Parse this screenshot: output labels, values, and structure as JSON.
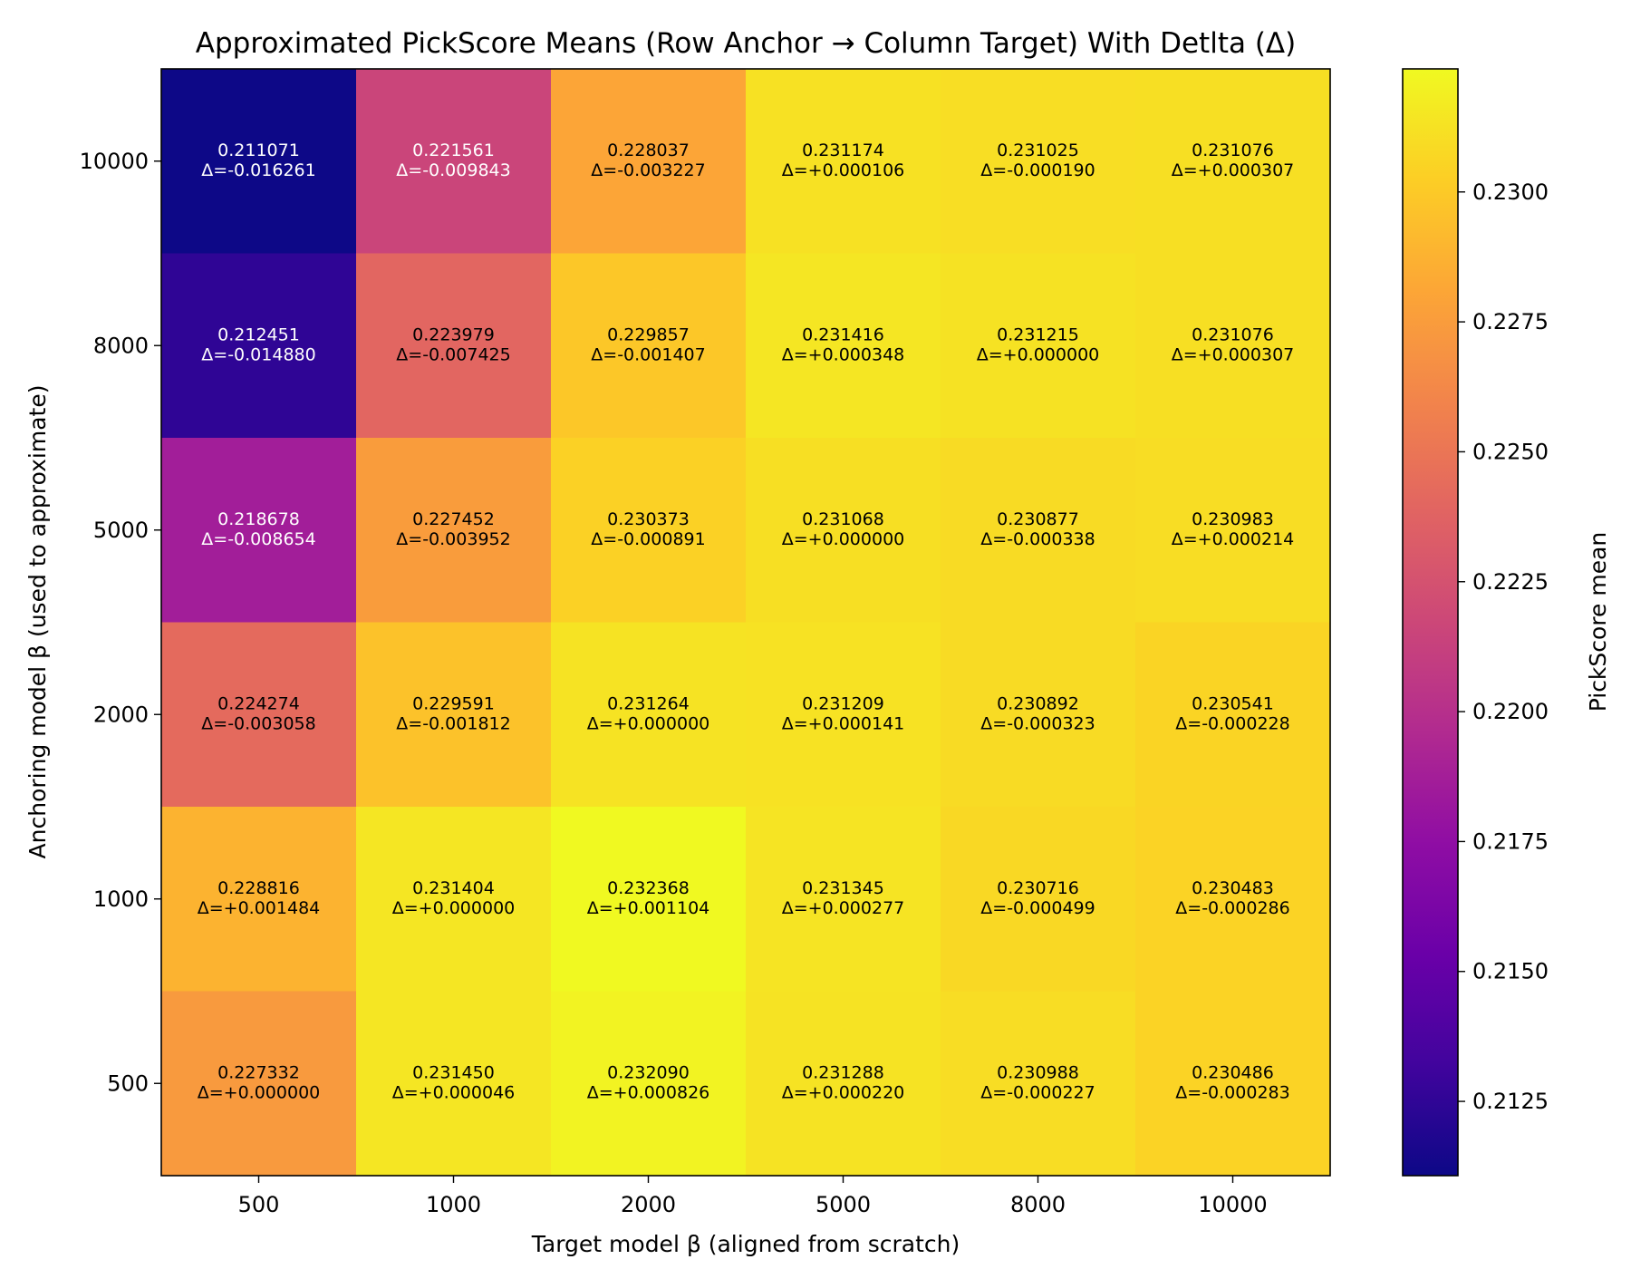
{
  "chart_data": {
    "type": "heatmap",
    "title": "Approximated PickScore Means (Row Anchor → Column Target) With Detlta (Δ)",
    "xlabel": "Target model β (aligned from scratch)",
    "ylabel": "Anchoring model β (used to approximate)",
    "x_categories": [
      "500",
      "1000",
      "2000",
      "5000",
      "8000",
      "10000"
    ],
    "y_categories": [
      "10000",
      "8000",
      "5000",
      "2000",
      "1000",
      "500"
    ],
    "values": [
      [
        0.211071,
        0.221561,
        0.228037,
        0.231174,
        0.231025,
        0.231076
      ],
      [
        0.212451,
        0.223979,
        0.229857,
        0.231416,
        0.231215,
        0.231076
      ],
      [
        0.218678,
        0.227452,
        0.230373,
        0.231068,
        0.230877,
        0.230983
      ],
      [
        0.224274,
        0.229591,
        0.231264,
        0.231209,
        0.230892,
        0.230541
      ],
      [
        0.228816,
        0.231404,
        0.232368,
        0.231345,
        0.230716,
        0.230483
      ],
      [
        0.227332,
        0.23145,
        0.23209,
        0.231288,
        0.230988,
        0.230486
      ]
    ],
    "cell_labels": [
      [
        [
          "0.211071",
          "Δ=-0.016261"
        ],
        [
          "0.221561",
          "Δ=-0.009843"
        ],
        [
          "0.228037",
          "Δ=-0.003227"
        ],
        [
          "0.231174",
          "Δ=+0.000106"
        ],
        [
          "0.231025",
          "Δ=-0.000190"
        ],
        [
          "0.231076",
          "Δ=+0.000307"
        ]
      ],
      [
        [
          "0.212451",
          "Δ=-0.014880"
        ],
        [
          "0.223979",
          "Δ=-0.007425"
        ],
        [
          "0.229857",
          "Δ=-0.001407"
        ],
        [
          "0.231416",
          "Δ=+0.000348"
        ],
        [
          "0.231215",
          "Δ=+0.000000"
        ],
        [
          "0.231076",
          "Δ=+0.000307"
        ]
      ],
      [
        [
          "0.218678",
          "Δ=-0.008654"
        ],
        [
          "0.227452",
          "Δ=-0.003952"
        ],
        [
          "0.230373",
          "Δ=-0.000891"
        ],
        [
          "0.231068",
          "Δ=+0.000000"
        ],
        [
          "0.230877",
          "Δ=-0.000338"
        ],
        [
          "0.230983",
          "Δ=+0.000214"
        ]
      ],
      [
        [
          "0.224274",
          "Δ=-0.003058"
        ],
        [
          "0.229591",
          "Δ=-0.001812"
        ],
        [
          "0.231264",
          "Δ=+0.000000"
        ],
        [
          "0.231209",
          "Δ=+0.000141"
        ],
        [
          "0.230892",
          "Δ=-0.000323"
        ],
        [
          "0.230541",
          "Δ=-0.000228"
        ]
      ],
      [
        [
          "0.228816",
          "Δ=+0.001484"
        ],
        [
          "0.231404",
          "Δ=+0.000000"
        ],
        [
          "0.232368",
          "Δ=+0.001104"
        ],
        [
          "0.231345",
          "Δ=+0.000277"
        ],
        [
          "0.230716",
          "Δ=-0.000499"
        ],
        [
          "0.230483",
          "Δ=-0.000286"
        ]
      ],
      [
        [
          "0.227332",
          "Δ=+0.000000"
        ],
        [
          "0.231450",
          "Δ=+0.000046"
        ],
        [
          "0.232090",
          "Δ=+0.000826"
        ],
        [
          "0.231288",
          "Δ=+0.000220"
        ],
        [
          "0.230988",
          "Δ=-0.000227"
        ],
        [
          "0.230486",
          "Δ=-0.000283"
        ]
      ]
    ],
    "colormap": "plasma",
    "colorbar": {
      "label": "PickScore mean",
      "range": [
        0.211071,
        0.232368
      ],
      "ticks": [
        "0.2125",
        "0.2150",
        "0.2175",
        "0.2200",
        "0.2225",
        "0.2250",
        "0.2275",
        "0.2300"
      ],
      "tick_values": [
        0.2125,
        0.215,
        0.2175,
        0.22,
        0.2225,
        0.225,
        0.2275,
        0.23
      ]
    },
    "text_color_dark": "#000000",
    "text_color_light": "#ffffff",
    "grid": false
  }
}
